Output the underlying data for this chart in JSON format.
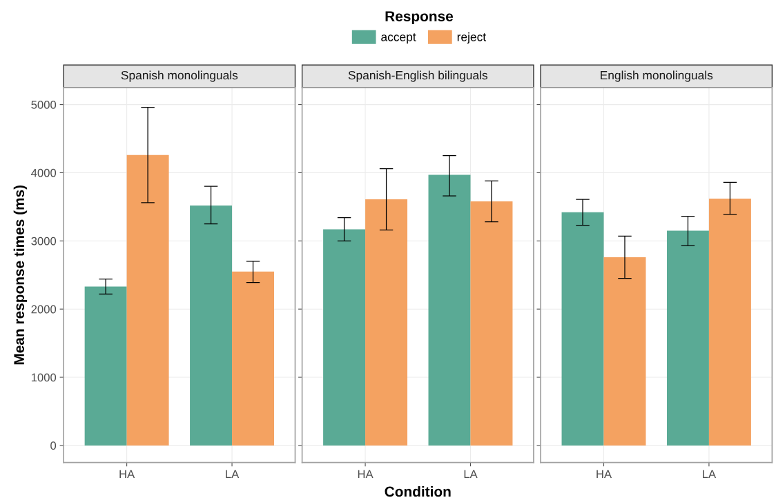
{
  "chart_data": [
    {
      "type": "bar",
      "title": "Spanish monolinguals",
      "ylabel": "Mean response times (ms)",
      "legend_title": "Response",
      "legend": "top",
      "categories": [
        "HA",
        "LA"
      ],
      "grid": true,
      "ylim": [
        -250,
        5250
      ],
      "yticks": [
        0,
        1000,
        2000,
        3000,
        4000,
        5000
      ],
      "series": [
        {
          "name": "accept",
          "color": "#5aaa95",
          "values": [
            2330,
            3520
          ],
          "errors": [
            [
              2220,
              2440
            ],
            [
              3250,
              3800
            ]
          ]
        },
        {
          "name": "reject",
          "color": "#f4a261",
          "values": [
            4260,
            2550
          ],
          "errors": [
            [
              3560,
              4960
            ],
            [
              2390,
              2700
            ]
          ]
        }
      ]
    },
    {
      "type": "bar",
      "title": "Spanish-English bilinguals",
      "xlabel": "Condition",
      "categories": [
        "HA",
        "LA"
      ],
      "grid": true,
      "tick_labels": "x",
      "ylim": [
        -250,
        5250
      ],
      "yticks": [
        0,
        1000,
        2000,
        3000,
        4000,
        5000
      ],
      "series": [
        {
          "color": "#5aaa95",
          "values": [
            3170,
            3970
          ],
          "errors": [
            [
              3000,
              3340
            ],
            [
              3660,
              4250
            ]
          ]
        },
        {
          "color": "#f4a261",
          "values": [
            3610,
            3580
          ],
          "errors": [
            [
              3160,
              4060
            ],
            [
              3280,
              3880
            ]
          ]
        }
      ]
    },
    {
      "type": "bar",
      "title": "English monolinguals",
      "categories": [
        "HA",
        "LA"
      ],
      "grid": true,
      "tick_labels": "x",
      "ylim": [
        -250,
        5250
      ],
      "yticks": [
        0,
        1000,
        2000,
        3000,
        4000,
        5000
      ],
      "series": [
        {
          "color": "#5aaa95",
          "values": [
            3420,
            3150
          ],
          "errors": [
            [
              3230,
              3610
            ],
            [
              2930,
              3360
            ]
          ]
        },
        {
          "color": "#f4a261",
          "values": [
            2760,
            3620
          ],
          "errors": [
            [
              2450,
              3070
            ],
            [
              3390,
              3860
            ]
          ]
        }
      ]
    }
  ]
}
